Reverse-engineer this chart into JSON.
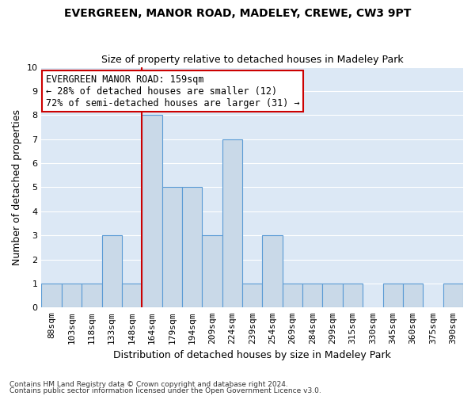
{
  "title1": "EVERGREEN, MANOR ROAD, MADELEY, CREWE, CW3 9PT",
  "title2": "Size of property relative to detached houses in Madeley Park",
  "xlabel": "Distribution of detached houses by size in Madeley Park",
  "ylabel": "Number of detached properties",
  "footnote1": "Contains HM Land Registry data © Crown copyright and database right 2024.",
  "footnote2": "Contains public sector information licensed under the Open Government Licence v3.0.",
  "categories": [
    "88sqm",
    "103sqm",
    "118sqm",
    "133sqm",
    "148sqm",
    "164sqm",
    "179sqm",
    "194sqm",
    "209sqm",
    "224sqm",
    "239sqm",
    "254sqm",
    "269sqm",
    "284sqm",
    "299sqm",
    "315sqm",
    "330sqm",
    "345sqm",
    "360sqm",
    "375sqm",
    "390sqm"
  ],
  "values": [
    1,
    1,
    1,
    3,
    1,
    8,
    5,
    5,
    3,
    7,
    1,
    3,
    1,
    1,
    1,
    1,
    0,
    1,
    1,
    0,
    1
  ],
  "bar_color": "#c9d9e8",
  "bar_edge_color": "#5b9bd5",
  "ref_line_index": 5,
  "ref_line_color": "#cc0000",
  "annotation_text": "EVERGREEN MANOR ROAD: 159sqm\n← 28% of detached houses are smaller (12)\n72% of semi-detached houses are larger (31) →",
  "annotation_box_color": "#ffffff",
  "annotation_box_edge_color": "#cc0000",
  "ylim": [
    0,
    10
  ],
  "yticks": [
    0,
    1,
    2,
    3,
    4,
    5,
    6,
    7,
    8,
    9,
    10
  ],
  "background_color": "#dce8f5",
  "grid_color": "#ffffff",
  "title1_fontsize": 10,
  "title2_fontsize": 9,
  "xlabel_fontsize": 9,
  "ylabel_fontsize": 9,
  "tick_fontsize": 8,
  "annotation_fontsize": 8.5
}
